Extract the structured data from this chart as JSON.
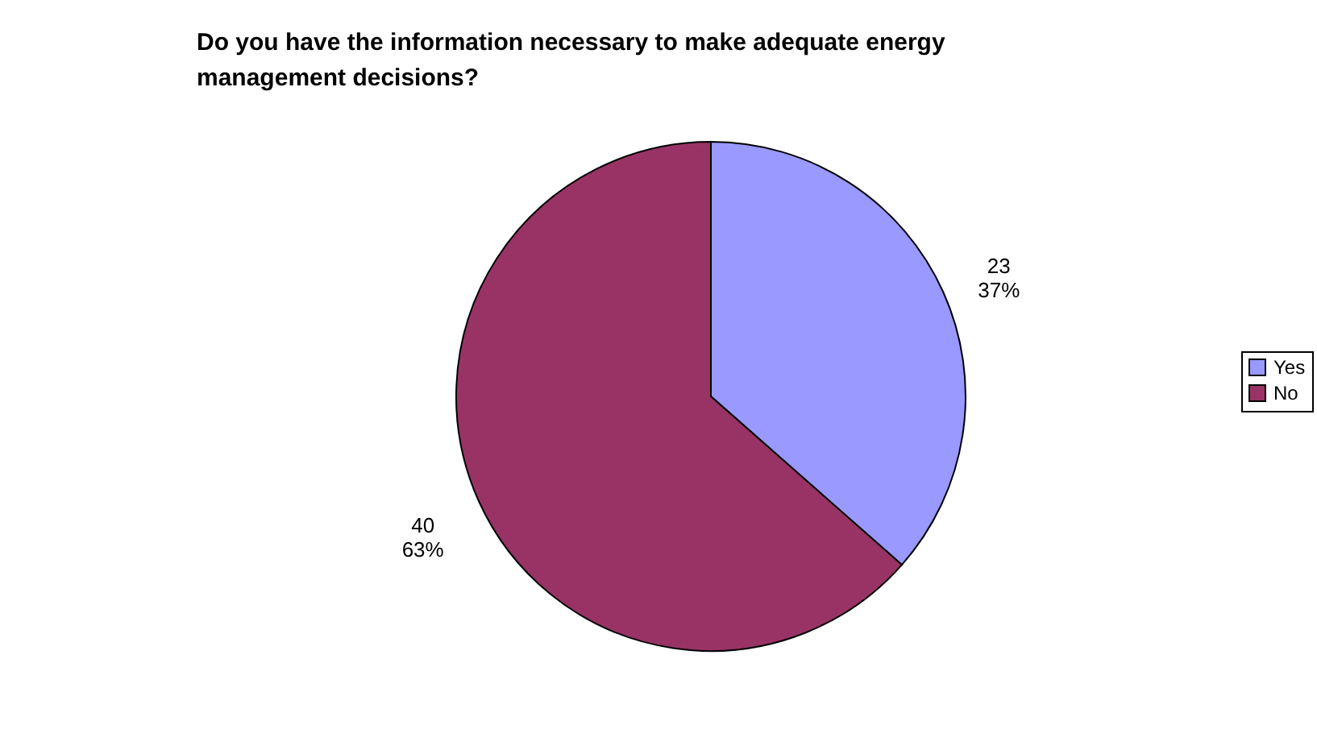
{
  "chart_data": {
    "type": "pie",
    "title": "Do you have the information necessary to make adequate energy management decisions?",
    "categories": [
      "Yes",
      "No"
    ],
    "values": [
      23,
      40
    ],
    "colors": [
      "#9999ff",
      "#993366"
    ],
    "value_labels": [
      "23\n37%",
      "40\n63%"
    ],
    "legend": "right"
  }
}
